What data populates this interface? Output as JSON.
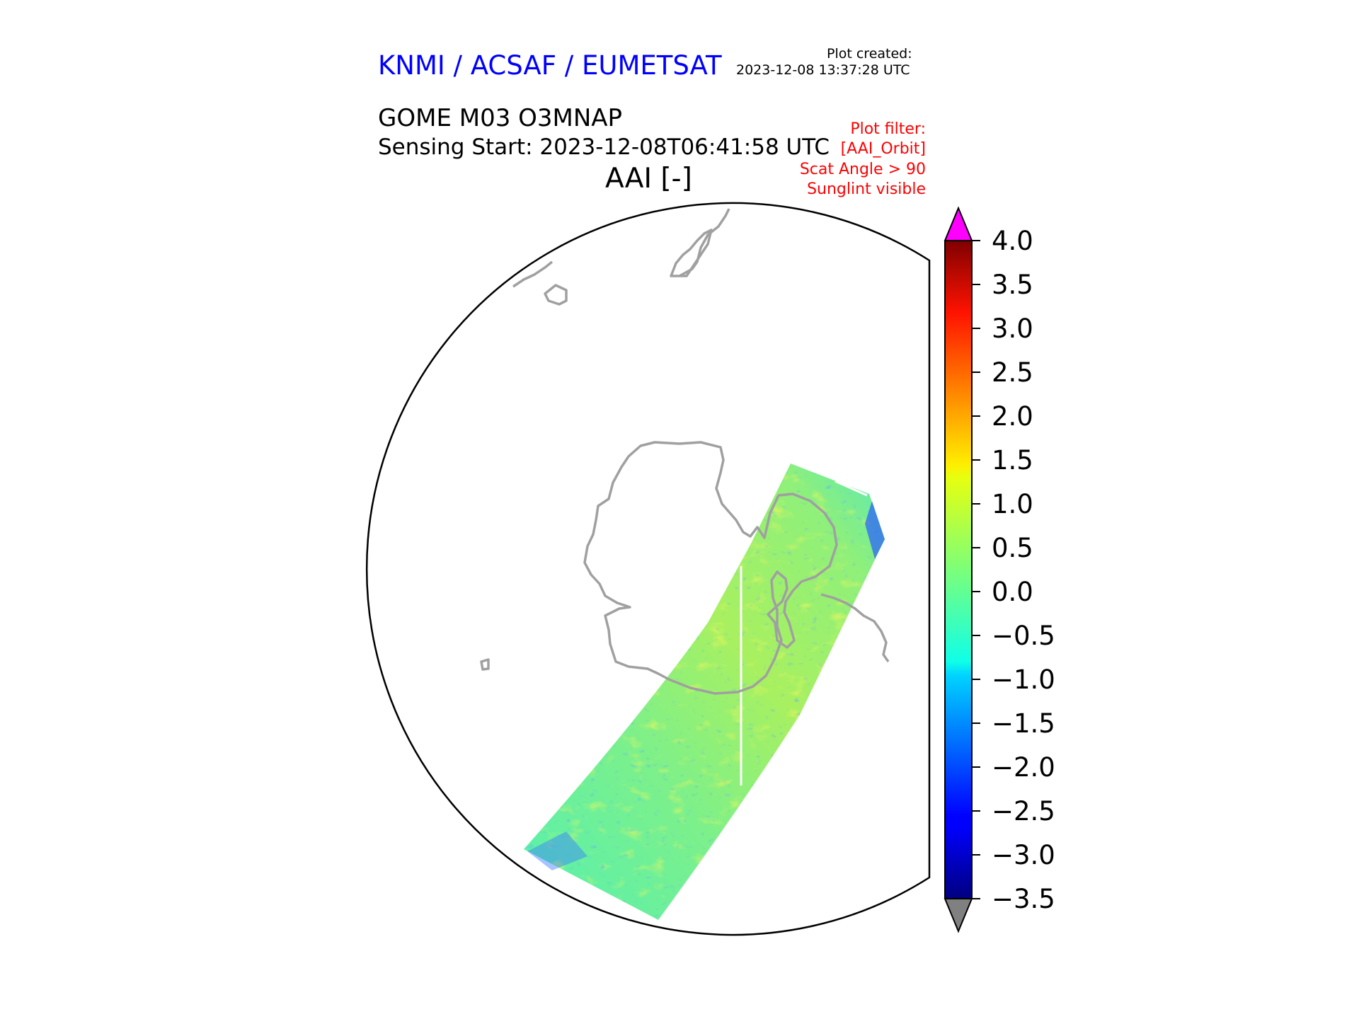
{
  "header": {
    "organization": "KNMI / ACSAF / EUMETSAT",
    "plot_created_label": "Plot created:",
    "plot_created_time": "2023-12-08 13:37:28 UTC",
    "product": "GOME M03 O3MNAP",
    "sensing_start": "Sensing Start: 2023-12-08T06:41:58 UTC",
    "variable_title": "AAI [-]"
  },
  "plot_filter": [
    "Plot filter:",
    "[AAI_Orbit]",
    "Scat Angle > 90",
    "Sunglint visible"
  ],
  "colorbar": {
    "min": -3.5,
    "max": 4.0,
    "ticks": [
      "4.0",
      "3.5",
      "3.0",
      "2.5",
      "2.0",
      "1.5",
      "1.0",
      "0.5",
      "0.0",
      "−0.5",
      "−1.0",
      "−1.5",
      "−2.0",
      "−2.5",
      "−3.0",
      "−3.5"
    ],
    "colormap": "jet",
    "over_color": "#ff00ff",
    "under_color": "#808080"
  },
  "map": {
    "projection": "south-polar-stereographic",
    "coastline_color": "#a0a0a0",
    "boundary_color": "#000000"
  }
}
